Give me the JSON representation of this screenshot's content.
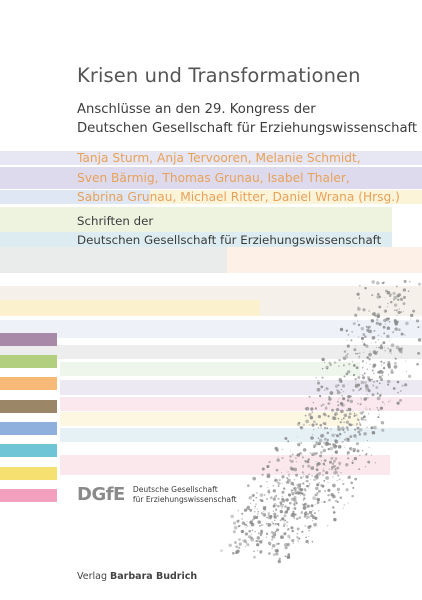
{
  "cover": {
    "title": "Krisen und Transformationen",
    "subtitle_line1": "Anschlüsse an den 29. Kongress der",
    "subtitle_line2": "Deutschen Gesellschaft für Erziehungswissenschaft",
    "editors_line1": "Tanja Sturm, Anja Tervooren, Melanie Schmidt,",
    "editors_line2": "Sven Bärmig, Thomas Grunau, Isabel Thaler,",
    "editors_line3": "Sabrina Grunau, Michael Ritter, Daniel Wrana (Hrsg.)",
    "series_line1": "Schriften der",
    "series_line2": "Deutschen Gesellschaft für Erziehungswissenschaft",
    "logo_text": "DGfE",
    "society_line1": "Deutsche Gesellschaft",
    "society_line2": "für Erziehungswissenschaft",
    "publisher_prefix": "Verlag",
    "publisher_name": "Barbara Budrich"
  },
  "colors": {
    "editors_text": "#e8a15a",
    "logo": "#8a8a8a",
    "speckle": "#8c8c8c",
    "swatches": [
      "#a88aa8",
      "#b2cf80",
      "#f6b978",
      "#9b8667",
      "#8fb0dc",
      "#6fc5d5",
      "#f6e06f",
      "#f2a0be"
    ]
  }
}
